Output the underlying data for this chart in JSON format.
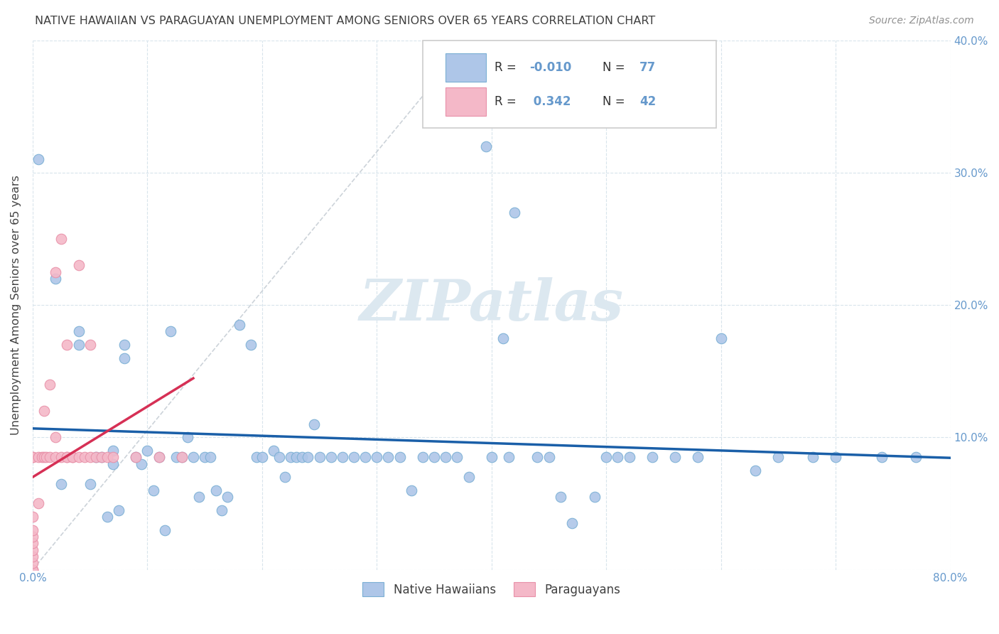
{
  "title": "NATIVE HAWAIIAN VS PARAGUAYAN UNEMPLOYMENT AMONG SENIORS OVER 65 YEARS CORRELATION CHART",
  "source": "Source: ZipAtlas.com",
  "ylabel": "Unemployment Among Seniors over 65 years",
  "xlim": [
    0,
    0.8
  ],
  "ylim": [
    0,
    0.4
  ],
  "xticks": [
    0.0,
    0.1,
    0.2,
    0.3,
    0.4,
    0.5,
    0.6,
    0.7,
    0.8
  ],
  "xticklabels": [
    "0.0%",
    "",
    "",
    "",
    "",
    "",
    "",
    "",
    "80.0%"
  ],
  "yticks": [
    0.0,
    0.1,
    0.2,
    0.3,
    0.4
  ],
  "yticklabels_right": [
    "",
    "10.0%",
    "20.0%",
    "30.0%",
    "40.0%"
  ],
  "color_blue": "#aec6e8",
  "color_pink": "#f4b8c8",
  "trendline_blue_color": "#1a5fa8",
  "trendline_pink_color": "#d63055",
  "scatter_blue_edgecolor": "#7aafd4",
  "scatter_pink_edgecolor": "#e890a8",
  "title_color": "#404040",
  "axis_tick_color": "#6699cc",
  "watermark_color": "#dce8f0",
  "background_color": "#ffffff",
  "grid_color": "#d8e4ec",
  "diag_line_color": "#c0c8d0",
  "native_hawaiians_x": [
    0.005,
    0.02,
    0.025,
    0.04,
    0.04,
    0.05,
    0.055,
    0.06,
    0.065,
    0.07,
    0.07,
    0.075,
    0.08,
    0.08,
    0.09,
    0.095,
    0.1,
    0.105,
    0.11,
    0.115,
    0.12,
    0.125,
    0.13,
    0.135,
    0.14,
    0.145,
    0.15,
    0.155,
    0.16,
    0.165,
    0.17,
    0.18,
    0.19,
    0.195,
    0.2,
    0.21,
    0.215,
    0.22,
    0.225,
    0.23,
    0.235,
    0.24,
    0.245,
    0.25,
    0.26,
    0.27,
    0.28,
    0.29,
    0.3,
    0.31,
    0.32,
    0.33,
    0.34,
    0.35,
    0.36,
    0.37,
    0.38,
    0.395,
    0.4,
    0.41,
    0.415,
    0.42,
    0.44,
    0.45,
    0.46,
    0.47,
    0.49,
    0.5,
    0.51,
    0.52,
    0.54,
    0.56,
    0.58,
    0.6,
    0.63,
    0.65,
    0.68,
    0.7,
    0.74,
    0.77
  ],
  "native_hawaiians_y": [
    0.31,
    0.22,
    0.065,
    0.17,
    0.18,
    0.065,
    0.085,
    0.085,
    0.04,
    0.08,
    0.09,
    0.045,
    0.16,
    0.17,
    0.085,
    0.08,
    0.09,
    0.06,
    0.085,
    0.03,
    0.18,
    0.085,
    0.085,
    0.1,
    0.085,
    0.055,
    0.085,
    0.085,
    0.06,
    0.045,
    0.055,
    0.185,
    0.17,
    0.085,
    0.085,
    0.09,
    0.085,
    0.07,
    0.085,
    0.085,
    0.085,
    0.085,
    0.11,
    0.085,
    0.085,
    0.085,
    0.085,
    0.085,
    0.085,
    0.085,
    0.085,
    0.06,
    0.085,
    0.085,
    0.085,
    0.085,
    0.07,
    0.32,
    0.085,
    0.175,
    0.085,
    0.27,
    0.085,
    0.085,
    0.055,
    0.035,
    0.055,
    0.085,
    0.085,
    0.085,
    0.085,
    0.085,
    0.085,
    0.175,
    0.075,
    0.085,
    0.085,
    0.085,
    0.085,
    0.085
  ],
  "paraguayans_x": [
    0.0,
    0.0,
    0.0,
    0.0,
    0.0,
    0.0,
    0.0,
    0.0,
    0.0,
    0.0,
    0.0,
    0.0,
    0.005,
    0.005,
    0.008,
    0.01,
    0.01,
    0.012,
    0.015,
    0.015,
    0.02,
    0.02,
    0.02,
    0.025,
    0.025,
    0.03,
    0.03,
    0.03,
    0.035,
    0.035,
    0.04,
    0.04,
    0.045,
    0.05,
    0.05,
    0.055,
    0.06,
    0.065,
    0.07,
    0.09,
    0.11,
    0.13
  ],
  "paraguayans_y": [
    0.0,
    0.0,
    0.0,
    0.005,
    0.01,
    0.015,
    0.02,
    0.025,
    0.03,
    0.04,
    0.085,
    0.085,
    0.05,
    0.085,
    0.085,
    0.085,
    0.12,
    0.085,
    0.085,
    0.14,
    0.085,
    0.1,
    0.225,
    0.085,
    0.25,
    0.085,
    0.085,
    0.17,
    0.085,
    0.085,
    0.085,
    0.23,
    0.085,
    0.085,
    0.17,
    0.085,
    0.085,
    0.085,
    0.085,
    0.085,
    0.085,
    0.085
  ]
}
